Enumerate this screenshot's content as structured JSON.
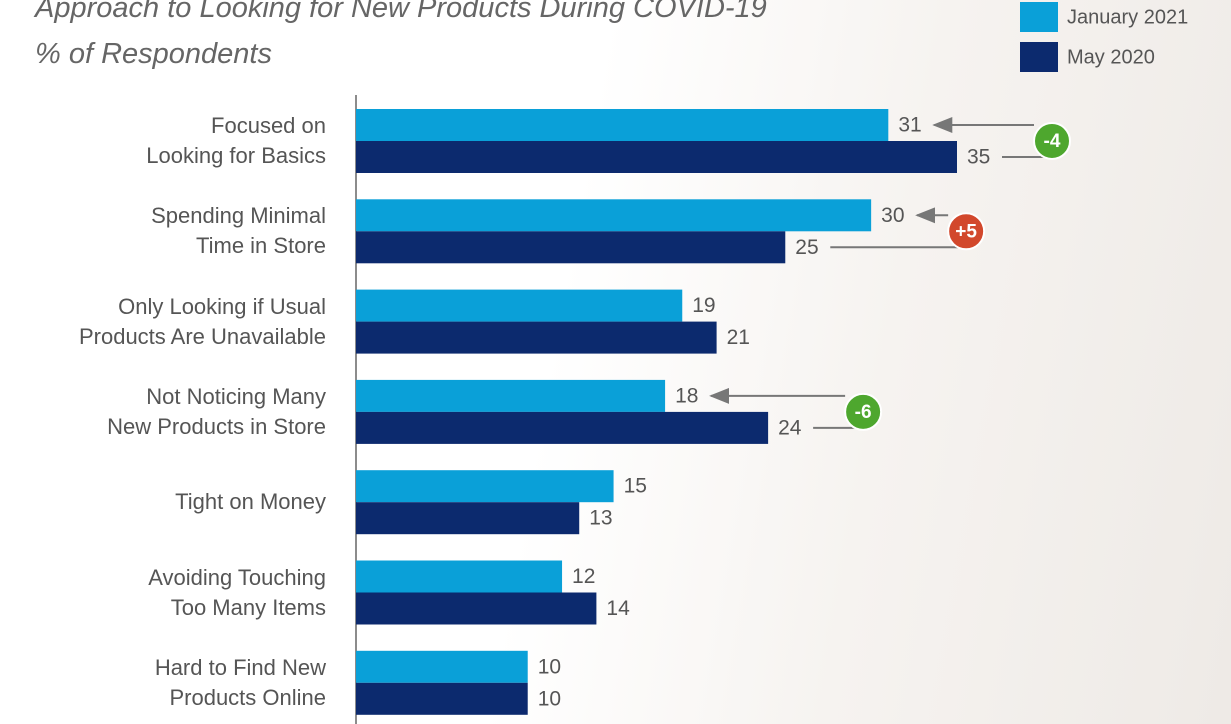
{
  "chart_data": {
    "type": "hbar",
    "title": "Approach to Looking for New Products During COVID-19",
    "subtitle": "% of Respondents",
    "categories": [
      "Focused on\nLooking for Basics",
      "Spending Minimal\nTime in Store",
      "Only Looking if Usual\nProducts Are Unavailable",
      "Not Noticing Many\nNew Products in Store",
      "Tight on Money",
      "Avoiding Touching\nToo Many Items",
      "Hard to Find New\nProducts Online"
    ],
    "series": [
      {
        "name": "January 2021",
        "color": "#0aa0d8",
        "values": [
          31,
          30,
          19,
          18,
          15,
          12,
          10
        ]
      },
      {
        "name": "May 2020",
        "color": "#0c2a6e",
        "values": [
          35,
          25,
          21,
          24,
          13,
          14,
          10
        ]
      }
    ],
    "changes": [
      -4,
      5,
      null,
      -6,
      null,
      null,
      null
    ],
    "change_labels": [
      "-4",
      "+5",
      null,
      "-6",
      null,
      null,
      null
    ],
    "increase_color": "#d2482c",
    "decrease_color": "#4ea72e",
    "xlim": [
      0,
      35
    ]
  }
}
